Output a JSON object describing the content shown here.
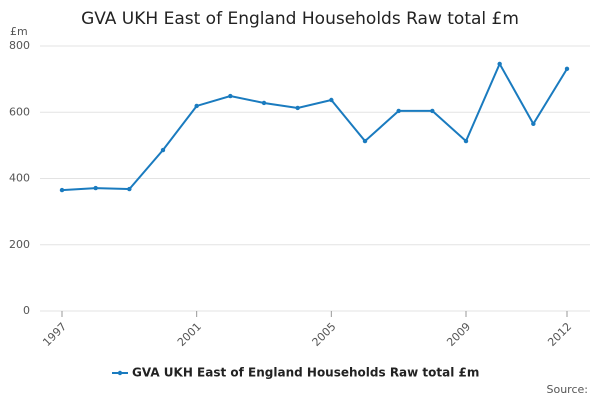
{
  "chart_data": {
    "type": "line",
    "title": "GVA UKH East of England Households Raw total £m",
    "y_label": "£m",
    "source": "Source:",
    "x": [
      1997,
      1998,
      1999,
      2000,
      2001,
      2002,
      2003,
      2004,
      2005,
      2006,
      2007,
      2008,
      2009,
      2010,
      2011,
      2012
    ],
    "series": [
      {
        "name": "GVA UKH East of England Households Raw total £m",
        "color": "#1a7bbf",
        "values": [
          365,
          371,
          368,
          486,
          619,
          649,
          628,
          613,
          637,
          513,
          604,
          604,
          513,
          746,
          565,
          731
        ]
      }
    ],
    "xlim": [
      1997,
      2012
    ],
    "xticks": [
      1997,
      2001,
      2005,
      2009,
      2012
    ],
    "ylim": [
      0,
      800
    ],
    "yticks": [
      0,
      200,
      400,
      600,
      800
    ],
    "grid": true
  }
}
